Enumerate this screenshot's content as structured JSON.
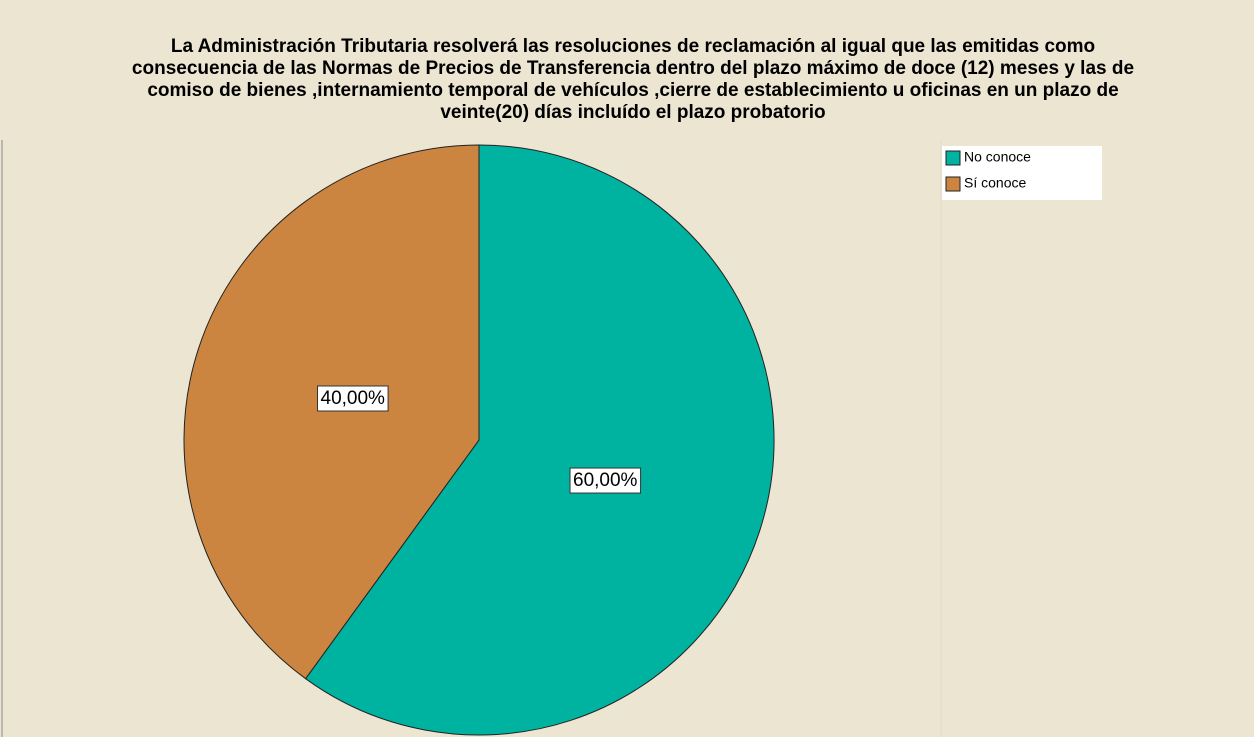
{
  "chart_data": {
    "type": "pie",
    "title": [
      "La Administración Tributaria resolverá las resoluciones de reclamación al igual que las emitidas como",
      "consecuencia de las Normas de Precios de Transferencia dentro del plazo máximo de doce (12) meses y las de",
      "comiso de bienes ,internamiento temporal de vehículos ,cierre de establecimiento  u oficinas en un plazo de",
      "veinte(20) días incluído el plazo probatorio"
    ],
    "categories": [
      "No conoce",
      "Sí conoce"
    ],
    "values": [
      60,
      40
    ],
    "value_labels": [
      "60,00%",
      "40,00%"
    ],
    "colors": [
      "#00b3a1",
      "#cc8540"
    ],
    "legend": "top-right"
  }
}
